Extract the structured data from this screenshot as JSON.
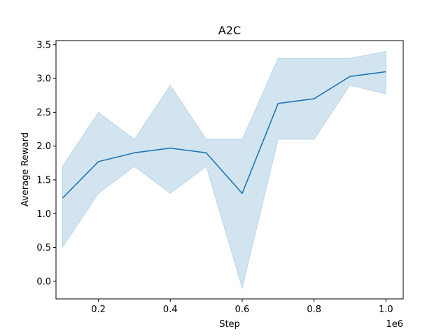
{
  "chart_data": {
    "type": "line",
    "title": "A2C",
    "xlabel": "Step",
    "ylabel": "Average Reward",
    "x_offset_label": "1e6",
    "x_scale": 1000000,
    "xlim": [
      82000,
      1048000
    ],
    "ylim": [
      -0.26,
      3.56
    ],
    "x_ticks": [
      200000,
      400000,
      600000,
      800000,
      1000000
    ],
    "x_tick_labels": [
      "0.2",
      "0.4",
      "0.6",
      "0.8",
      "1.0"
    ],
    "y_ticks": [
      0.0,
      0.5,
      1.0,
      1.5,
      2.0,
      2.5,
      3.0,
      3.5
    ],
    "y_tick_labels": [
      "0.0",
      "0.5",
      "1.0",
      "1.5",
      "2.0",
      "2.5",
      "3.0",
      "3.5"
    ],
    "grid": false,
    "series": [
      {
        "x": [
          100000,
          200000,
          300000,
          400000,
          500000,
          600000,
          700000,
          800000,
          900000,
          1000000
        ],
        "values": [
          1.23,
          1.77,
          1.9,
          1.97,
          1.9,
          1.3,
          2.63,
          2.7,
          3.03,
          3.1
        ],
        "lower": [
          0.5,
          1.3,
          1.7,
          1.3,
          1.7,
          -0.1,
          2.1,
          2.1,
          2.9,
          2.77
        ],
        "upper": [
          1.7,
          2.5,
          2.1,
          2.9,
          2.1,
          2.1,
          3.3,
          3.3,
          3.3,
          3.4
        ],
        "color": "#1f77b4"
      }
    ]
  }
}
